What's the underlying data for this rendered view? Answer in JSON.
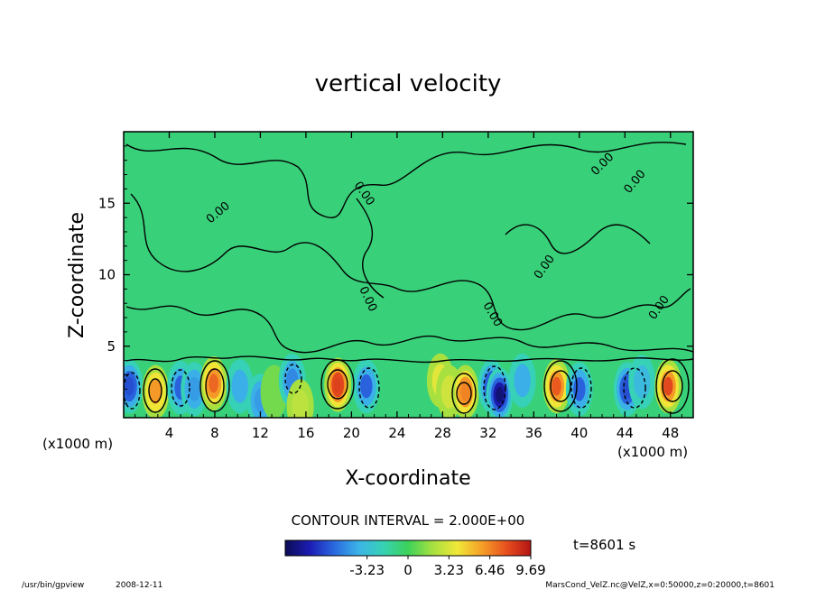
{
  "chart_data": {
    "type": "heatmap",
    "title": "vertical velocity",
    "xlabel": "X-coordinate",
    "ylabel": "Z-coordinate",
    "x_unit_left": "(x1000 m)",
    "x_unit_right": "(x1000 m)",
    "xlim": [
      0,
      50
    ],
    "ylim": [
      0,
      20
    ],
    "x_ticks": [
      "4",
      "8",
      "12",
      "16",
      "20",
      "24",
      "28",
      "32",
      "36",
      "40",
      "44",
      "48"
    ],
    "x_tick_values": [
      4,
      8,
      12,
      16,
      20,
      24,
      28,
      32,
      36,
      40,
      44,
      48
    ],
    "y_ticks": [
      "5",
      "10",
      "15"
    ],
    "y_tick_values": [
      5,
      10,
      15
    ],
    "contour_interval_label": "CONTOUR INTERVAL = 2.000E+00",
    "contour_label": "0.00",
    "time_label": "t=8601 s",
    "colorbar": {
      "min": -9.69,
      "max": 9.69,
      "tick_labels": [
        "-3.23",
        "0",
        "3.23",
        "6.46",
        "9.69"
      ],
      "tick_values": [
        -3.23,
        0,
        3.23,
        6.46,
        9.69
      ]
    },
    "cells": [
      {
        "x": 0.5,
        "z": 2.2,
        "w": -6.5
      },
      {
        "x": 2.8,
        "z": 1.8,
        "w": 6.0
      },
      {
        "x": 5.0,
        "z": 2.1,
        "w": -6.0
      },
      {
        "x": 6.2,
        "z": 2.0,
        "w": -4.5
      },
      {
        "x": 7.9,
        "z": 2.4,
        "w": 7.2
      },
      {
        "x": 10.2,
        "z": 2.2,
        "w": -4.0
      },
      {
        "x": 12.0,
        "z": 1.2,
        "w": -4.5
      },
      {
        "x": 13.2,
        "z": 1.8,
        "w": 1.0
      },
      {
        "x": 14.8,
        "z": 2.6,
        "w": -5.0
      },
      {
        "x": 15.5,
        "z": 0.8,
        "w": 2.5
      },
      {
        "x": 18.8,
        "z": 2.3,
        "w": 8.2
      },
      {
        "x": 21.3,
        "z": 2.2,
        "w": -6.0
      },
      {
        "x": 27.8,
        "z": 2.6,
        "w": 3.5
      },
      {
        "x": 28.6,
        "z": 1.8,
        "w": 3.0
      },
      {
        "x": 30.0,
        "z": 1.8,
        "w": 6.5
      },
      {
        "x": 32.3,
        "z": 2.2,
        "w": -6.5
      },
      {
        "x": 33.0,
        "z": 1.6,
        "w": -9.0
      },
      {
        "x": 35.0,
        "z": 2.6,
        "w": -4.0
      },
      {
        "x": 38.0,
        "z": 2.2,
        "w": 7.5
      },
      {
        "x": 40.0,
        "z": 2.0,
        "w": -6.0
      },
      {
        "x": 44.2,
        "z": 2.0,
        "w": -6.5
      },
      {
        "x": 45.5,
        "z": 2.5,
        "w": -3.5
      },
      {
        "x": 47.8,
        "z": 2.2,
        "w": 8.0
      }
    ]
  },
  "footer": {
    "program": "/usr/bin/gpview",
    "date": "2008-12-11",
    "source": "MarsCond_VelZ.nc@VelZ,x=0:50000,z=0:20000,t=8601"
  }
}
